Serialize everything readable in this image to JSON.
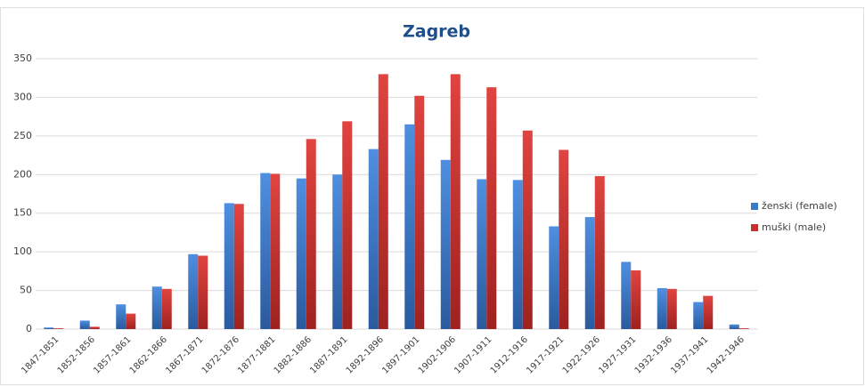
{
  "chart_data": {
    "type": "bar",
    "title": "Zagreb",
    "categories": [
      "1847-1851",
      "1852-1856",
      "1857-1861",
      "1862-1866",
      "1867-1871",
      "1872-1876",
      "1877-1881",
      "1882-1886",
      "1887-1891",
      "1892-1896",
      "1897-1901",
      "1902-1906",
      "1907-1911",
      "1912-1916",
      "1917-1921",
      "1922-1926",
      "1927-1931",
      "1932-1936",
      "1937-1941",
      "1942-1946"
    ],
    "series": [
      {
        "name": "ženski (female)",
        "color": "#3c78c8",
        "values": [
          2,
          11,
          32,
          55,
          97,
          163,
          202,
          195,
          200,
          233,
          265,
          219,
          194,
          193,
          133,
          145,
          87,
          53,
          35,
          6
        ]
      },
      {
        "name": "muški (male)",
        "color": "#c8302e",
        "values": [
          1,
          3,
          20,
          52,
          95,
          162,
          201,
          246,
          269,
          330,
          302,
          330,
          313,
          257,
          232,
          198,
          76,
          52,
          43,
          1
        ]
      }
    ],
    "ylim": [
      0,
      350
    ],
    "yticks": [
      0,
      50,
      100,
      150,
      200,
      250,
      300,
      350
    ],
    "grid": true,
    "legend": "right"
  }
}
